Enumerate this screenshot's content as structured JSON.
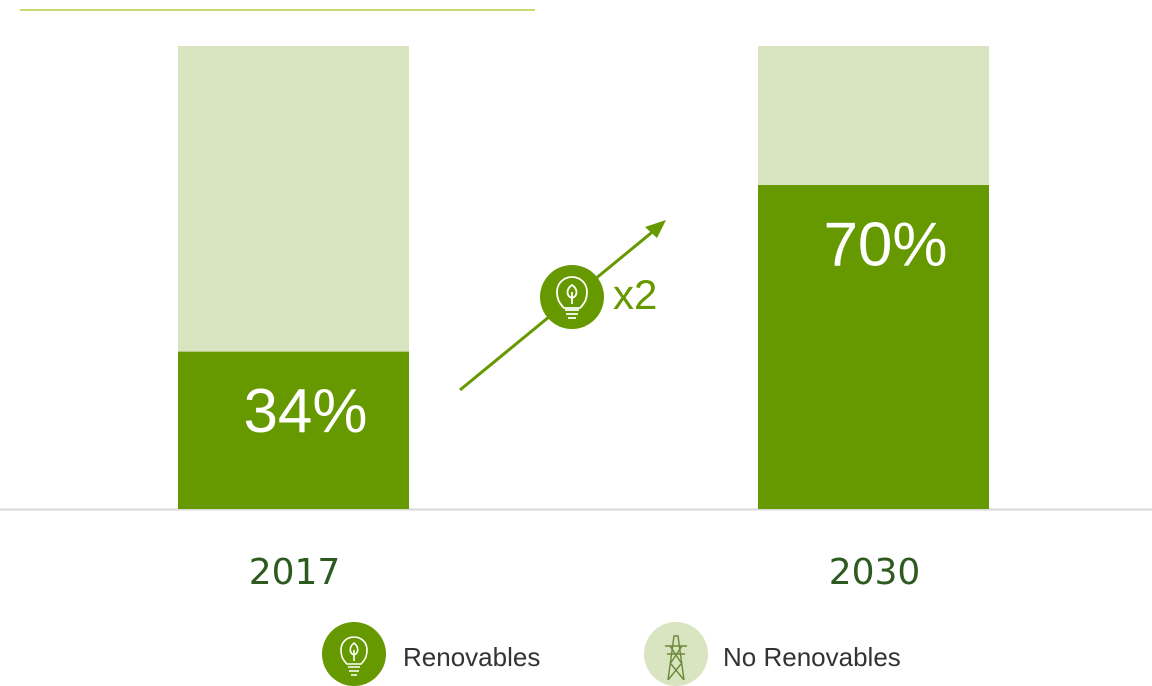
{
  "chart_data": {
    "type": "stacked_bar",
    "categories": [
      "2017",
      "2030"
    ],
    "series": [
      {
        "name": "Renovables",
        "color": "#669900",
        "values": [
          34,
          70
        ],
        "value_labels": [
          "34%",
          "70%"
        ]
      },
      {
        "name": "No Renovables",
        "color": "#d9e4c0",
        "values": [
          66,
          30
        ]
      }
    ],
    "ylim": [
      0,
      100
    ],
    "annotation": "x2"
  }
}
